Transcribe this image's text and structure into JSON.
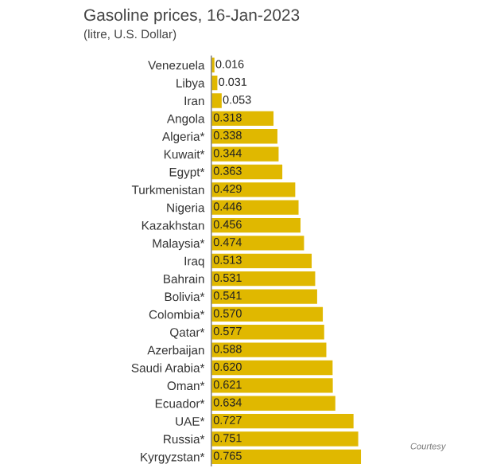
{
  "chart_data": {
    "type": "bar",
    "orientation": "horizontal",
    "title": "Gasoline prices, 16-Jan-2023",
    "subtitle": "(litre, U.S. Dollar)",
    "categories": [
      "Venezuela",
      "Libya",
      "Iran",
      "Angola",
      "Algeria*",
      "Kuwait*",
      "Egypt*",
      "Turkmenistan",
      "Nigeria",
      "Kazakhstan",
      "Malaysia*",
      "Iraq",
      "Bahrain",
      "Bolivia*",
      "Colombia*",
      "Qatar*",
      "Azerbaijan",
      "Saudi Arabia*",
      "Oman*",
      "Ecuador*",
      "UAE*",
      "Russia*",
      "Kyrgyzstan*"
    ],
    "values": [
      0.016,
      0.031,
      0.053,
      0.318,
      0.338,
      0.344,
      0.363,
      0.429,
      0.446,
      0.456,
      0.474,
      0.513,
      0.531,
      0.541,
      0.57,
      0.577,
      0.588,
      0.62,
      0.621,
      0.634,
      0.727,
      0.751,
      0.765
    ],
    "value_labels": [
      "0.016",
      "0.031",
      "0.053",
      "0.318",
      "0.338",
      "0.344",
      "0.363",
      "0.429",
      "0.446",
      "0.456",
      "0.474",
      "0.513",
      "0.531",
      "0.541",
      "0.570",
      "0.577",
      "0.588",
      "0.620",
      "0.621",
      "0.634",
      "0.727",
      "0.751",
      "0.765"
    ],
    "color": "#e0b800",
    "tick_labels": "y",
    "grid": false,
    "legend": false,
    "annotations": [
      "Courtesy"
    ]
  }
}
